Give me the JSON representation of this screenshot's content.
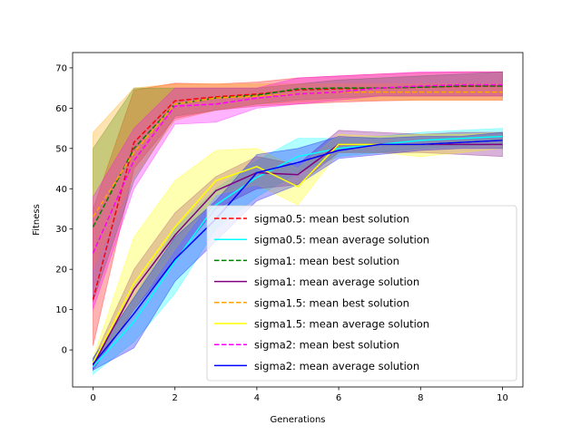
{
  "chart_data": {
    "type": "line",
    "xlabel": "Generations",
    "ylabel": "Fitness",
    "xlim": [
      -0.5,
      10.5
    ],
    "ylim": [
      -9.2,
      73.8
    ],
    "xticks": [
      0,
      2,
      4,
      6,
      8,
      10
    ],
    "yticks": [
      0,
      10,
      20,
      30,
      40,
      50,
      60,
      70
    ],
    "grid": false,
    "legend_position": "lower-right",
    "x": [
      0,
      1,
      2,
      3,
      4,
      5,
      6,
      7,
      8,
      9,
      10
    ],
    "series": [
      {
        "name": "sigma0.5: mean best solution",
        "color": "#ff0000",
        "dashed": true,
        "values": [
          12.5,
          51.5,
          61.8,
          62.8,
          63.5,
          64.5,
          64.8,
          65.0,
          65.2,
          65.4,
          65.5
        ],
        "lower": [
          1.0,
          45.0,
          57.5,
          59.5,
          60.5,
          61.0,
          61.5,
          61.8,
          62.0,
          62.0,
          62.0
        ],
        "upper": [
          35.0,
          64.5,
          66.2,
          66.0,
          66.5,
          67.5,
          68.0,
          68.5,
          68.8,
          69.0,
          69.0
        ]
      },
      {
        "name": "sigma0.5: mean average solution",
        "color": "#00ffff",
        "dashed": false,
        "values": [
          -4.2,
          7.0,
          22.0,
          36.0,
          42.8,
          48.0,
          50.0,
          51.0,
          52.0,
          52.5,
          53.0
        ],
        "lower": [
          -6.0,
          2.0,
          14.0,
          30.0,
          38.0,
          44.0,
          48.0,
          49.0,
          50.0,
          50.5,
          51.0
        ],
        "upper": [
          -2.0,
          13.0,
          30.0,
          40.0,
          47.0,
          52.5,
          52.5,
          53.0,
          54.0,
          54.5,
          55.0
        ]
      },
      {
        "name": "sigma1: mean best solution",
        "color": "#008000",
        "dashed": true,
        "values": [
          30.5,
          50.0,
          61.0,
          62.5,
          63.2,
          64.8,
          65.0,
          65.0,
          65.2,
          65.5,
          65.5
        ],
        "lower": [
          12.0,
          42.0,
          58.0,
          59.5,
          61.0,
          62.0,
          62.5,
          63.0,
          63.0,
          63.0,
          63.0
        ],
        "upper": [
          50.0,
          65.0,
          65.0,
          65.0,
          65.0,
          66.0,
          67.0,
          67.5,
          68.0,
          68.5,
          69.0
        ]
      },
      {
        "name": "sigma1: mean average solution",
        "color": "#800080",
        "dashed": false,
        "values": [
          -3.8,
          15.0,
          28.5,
          39.5,
          44.0,
          43.5,
          51.0,
          51.0,
          51.0,
          51.0,
          51.0
        ],
        "lower": [
          -5.0,
          10.0,
          22.5,
          35.0,
          40.0,
          41.0,
          49.0,
          49.0,
          49.0,
          48.5,
          48.0
        ],
        "upper": [
          -2.5,
          20.0,
          34.0,
          43.0,
          48.0,
          46.0,
          54.5,
          54.0,
          53.5,
          54.0,
          54.0
        ]
      },
      {
        "name": "sigma1.5: mean best solution",
        "color": "#ffa500",
        "dashed": true,
        "values": [
          33.0,
          49.0,
          61.0,
          62.5,
          63.0,
          63.5,
          64.0,
          64.0,
          64.0,
          64.0,
          64.0
        ],
        "lower": [
          20.0,
          43.0,
          57.0,
          59.5,
          61.0,
          61.5,
          62.0,
          62.0,
          62.0,
          62.0,
          62.0
        ],
        "upper": [
          54.0,
          65.0,
          66.0,
          66.0,
          66.0,
          66.0,
          66.0,
          66.0,
          66.0,
          66.0,
          66.0
        ]
      },
      {
        "name": "sigma1.5: mean average solution",
        "color": "#ffff00",
        "dashed": false,
        "values": [
          -3.2,
          16.5,
          30.5,
          42.0,
          45.5,
          40.5,
          51.0,
          51.0,
          51.0,
          51.5,
          52.0
        ],
        "lower": [
          -4.0,
          10.0,
          25.0,
          38.5,
          41.0,
          36.0,
          49.0,
          49.0,
          48.0,
          49.0,
          50.0
        ],
        "upper": [
          -2.0,
          28.0,
          42.0,
          49.5,
          50.0,
          45.0,
          53.5,
          53.0,
          53.5,
          53.5,
          54.0
        ]
      },
      {
        "name": "sigma2: mean best solution",
        "color": "#ff00ff",
        "dashed": true,
        "values": [
          24.0,
          47.0,
          60.5,
          61.0,
          62.5,
          63.5,
          64.0,
          65.0,
          65.5,
          65.8,
          65.8
        ],
        "lower": [
          10.0,
          40.0,
          56.0,
          56.5,
          60.0,
          61.0,
          62.0,
          63.0,
          63.0,
          63.0,
          63.0
        ],
        "upper": [
          38.0,
          55.0,
          65.0,
          65.0,
          65.0,
          67.5,
          68.0,
          68.5,
          69.0,
          69.0,
          69.0
        ]
      },
      {
        "name": "sigma2: mean average solution",
        "color": "#0000ff",
        "dashed": false,
        "values": [
          -3.5,
          9.0,
          22.5,
          32.5,
          44.0,
          46.5,
          49.5,
          51.0,
          51.0,
          51.5,
          52.0
        ],
        "lower": [
          -5.0,
          0.5,
          17.0,
          27.0,
          37.0,
          41.0,
          47.5,
          48.5,
          49.5,
          50.0,
          50.0
        ],
        "upper": [
          -2.0,
          13.0,
          28.0,
          37.0,
          48.5,
          50.0,
          53.0,
          52.5,
          53.0,
          53.0,
          54.0
        ]
      }
    ]
  }
}
